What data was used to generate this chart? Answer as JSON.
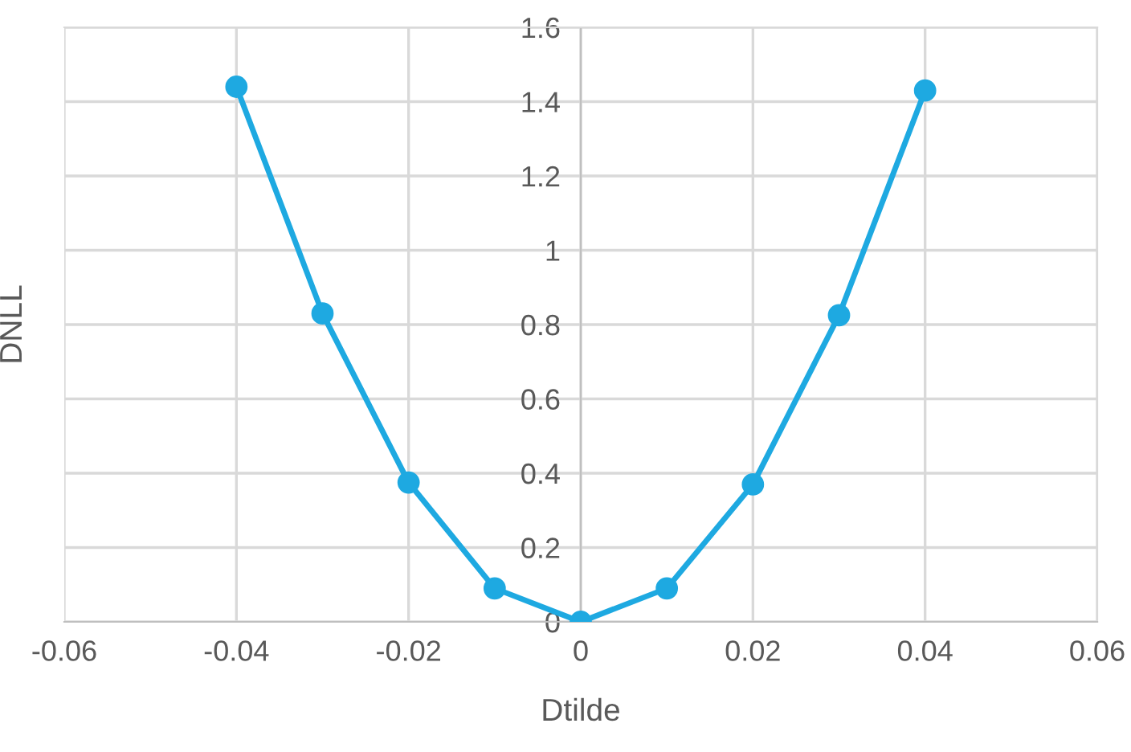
{
  "chart_data": {
    "type": "line",
    "xlabel": "Dtilde",
    "ylabel": "DNLL",
    "x": [
      -0.04,
      -0.03,
      -0.02,
      -0.01,
      0,
      0.01,
      0.02,
      0.03,
      0.04
    ],
    "series": [
      {
        "color": "#1ea9e1",
        "values": [
          1.44,
          0.83,
          0.375,
          0.09,
          0,
          0.09,
          0.37,
          0.825,
          1.43
        ]
      }
    ],
    "xlim": [
      -0.06,
      0.06
    ],
    "xticks": [
      -0.06,
      -0.04,
      -0.02,
      0,
      0.02,
      0.04,
      0.06
    ],
    "ylim": [
      0,
      1.6
    ],
    "yticks": [
      0,
      0.2,
      0.4,
      0.6,
      0.8,
      1,
      1.2,
      1.4,
      1.6
    ],
    "grid": true,
    "marker": "circle",
    "line_style": "solid"
  }
}
